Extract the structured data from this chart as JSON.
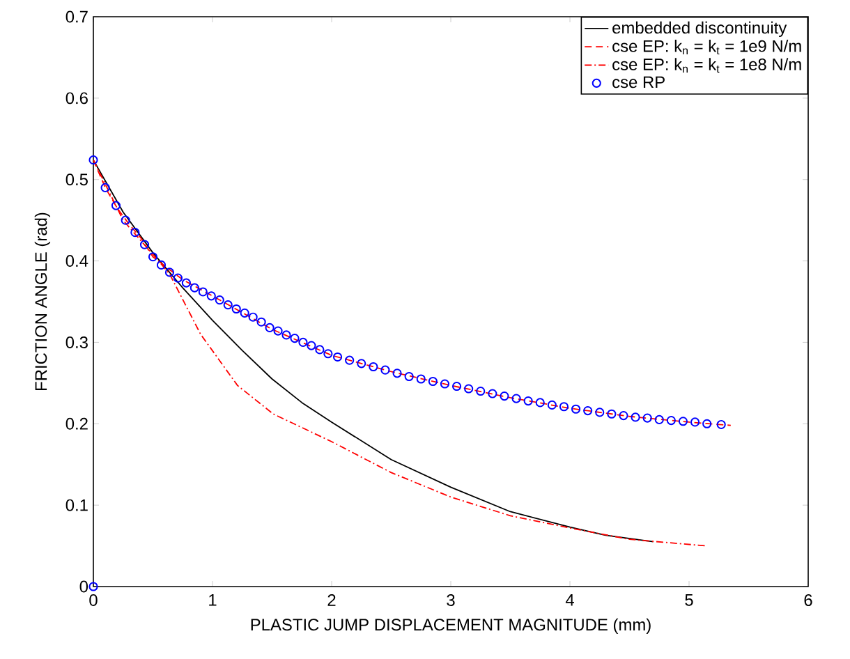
{
  "chart_data": {
    "type": "line",
    "xlabel": "PLASTIC JUMP DISPLACEMENT MAGNITUDE (mm)",
    "ylabel": "FRICTION ANGLE (rad)",
    "xlim": [
      0,
      6
    ],
    "ylim": [
      0,
      0.7
    ],
    "xticks": [
      0,
      1,
      2,
      3,
      4,
      5,
      6
    ],
    "yticks": [
      0,
      0.1,
      0.2,
      0.3,
      0.4,
      0.5,
      0.6,
      0.7
    ],
    "legend": "top right",
    "series": [
      {
        "name": "embedded discontinuity",
        "color": "#000000",
        "line_style": "solid",
        "marker": "none",
        "x": [
          0,
          0.25,
          0.5,
          0.75,
          1,
          1.25,
          1.5,
          1.75,
          2,
          2.5,
          3,
          3.5,
          4,
          4.3,
          4.7
        ],
        "values": [
          0.524,
          0.46,
          0.41,
          0.367,
          0.327,
          0.29,
          0.255,
          0.226,
          0.202,
          0.156,
          0.122,
          0.092,
          0.073,
          0.063,
          0.055
        ]
      },
      {
        "name": "cse EP: k$_{n}$ = k$_{t}$ = 1e9 N/m",
        "color": "#ff0000",
        "line_style": "dashed",
        "marker": "none",
        "x": [
          0,
          0.1,
          0.2,
          0.3,
          0.4,
          0.5,
          0.75,
          1,
          1.5,
          2,
          2.5,
          3,
          3.5,
          4,
          4.5,
          5,
          5.35
        ],
        "values": [
          0.524,
          0.49,
          0.465,
          0.445,
          0.428,
          0.405,
          0.377,
          0.357,
          0.316,
          0.284,
          0.264,
          0.247,
          0.232,
          0.219,
          0.209,
          0.202,
          0.198
        ]
      },
      {
        "name": "cse EP: k$_{n}$ = k$_{t}$ = 1e8 N/m",
        "color": "#ff0000",
        "line_style": "dashdot",
        "marker": "none",
        "x": [
          0,
          0.25,
          0.5,
          0.64,
          0.9,
          1.21,
          1.51,
          2,
          2.5,
          3,
          3.5,
          4,
          4.5,
          5.14
        ],
        "values": [
          0.524,
          0.45,
          0.408,
          0.384,
          0.31,
          0.247,
          0.212,
          0.178,
          0.14,
          0.11,
          0.087,
          0.072,
          0.058,
          0.05
        ]
      },
      {
        "name": "cse RP",
        "color": "#0000ff",
        "type": "scatter",
        "marker": "circle",
        "x": [
          0,
          0,
          0.1,
          0.19,
          0.27,
          0.35,
          0.43,
          0.5,
          0.57,
          0.64,
          0.71,
          0.78,
          0.85,
          0.92,
          0.99,
          1.06,
          1.13,
          1.2,
          1.27,
          1.34,
          1.41,
          1.48,
          1.55,
          1.62,
          1.69,
          1.76,
          1.83,
          1.9,
          1.97,
          2.05,
          2.15,
          2.25,
          2.35,
          2.45,
          2.55,
          2.65,
          2.75,
          2.85,
          2.95,
          3.05,
          3.15,
          3.25,
          3.35,
          3.45,
          3.55,
          3.65,
          3.75,
          3.85,
          3.95,
          4.05,
          4.15,
          4.25,
          4.35,
          4.45,
          4.55,
          4.65,
          4.75,
          4.85,
          4.95,
          5.05,
          5.15,
          5.27
        ],
        "values": [
          0,
          0.524,
          0.49,
          0.468,
          0.45,
          0.435,
          0.42,
          0.405,
          0.395,
          0.386,
          0.379,
          0.373,
          0.367,
          0.362,
          0.357,
          0.352,
          0.346,
          0.341,
          0.336,
          0.331,
          0.325,
          0.318,
          0.314,
          0.309,
          0.305,
          0.3,
          0.296,
          0.291,
          0.286,
          0.282,
          0.278,
          0.274,
          0.27,
          0.266,
          0.262,
          0.258,
          0.255,
          0.252,
          0.249,
          0.246,
          0.243,
          0.24,
          0.237,
          0.234,
          0.231,
          0.228,
          0.226,
          0.223,
          0.221,
          0.218,
          0.216,
          0.214,
          0.212,
          0.21,
          0.208,
          0.207,
          0.205,
          0.204,
          0.203,
          0.202,
          0.2,
          0.199
        ]
      }
    ]
  }
}
